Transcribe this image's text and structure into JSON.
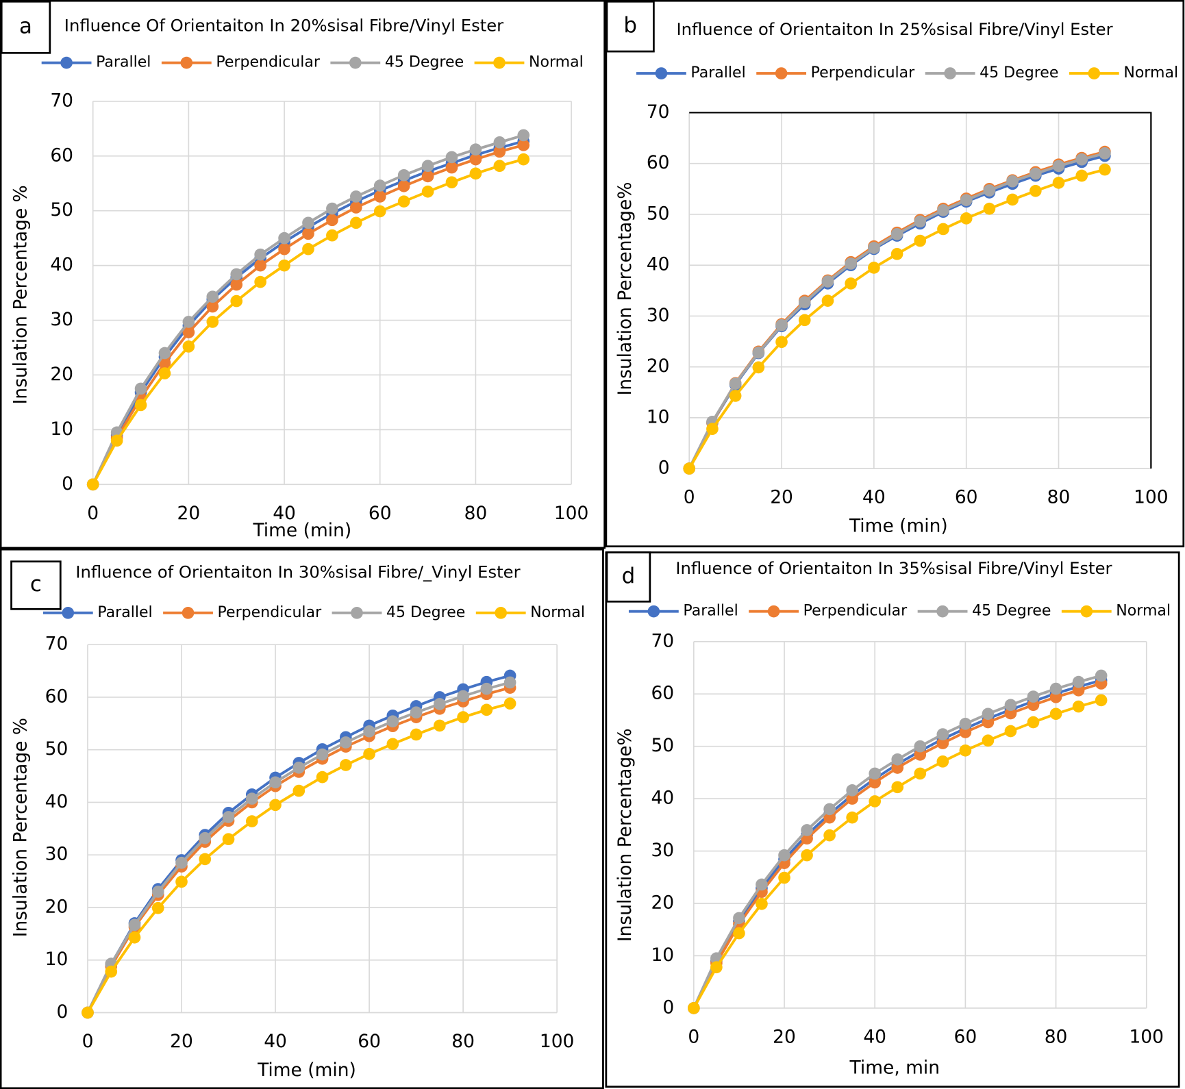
{
  "chart_data": [
    {
      "type": "line",
      "panel_label": "a",
      "title": "Influence Of Orientaiton In 20%sisal Fibre/Vinyl Ester",
      "x_label": "Time (min)",
      "y_label": "Insulation Percentage %",
      "x": [
        0,
        5,
        10,
        15,
        20,
        25,
        30,
        35,
        40,
        45,
        50,
        55,
        60,
        65,
        70,
        75,
        80,
        85,
        90
      ],
      "series": [
        {
          "name": "Parallel",
          "color": "#4472c4",
          "values": [
            0,
            9,
            16.8,
            23.3,
            29,
            33.8,
            37.8,
            41.3,
            44.3,
            47,
            49.5,
            51.7,
            53.7,
            55.5,
            57.2,
            58.7,
            60.2,
            61.5,
            62.7
          ]
        },
        {
          "name": "Perpendicular",
          "color": "#ed7d31",
          "values": [
            0,
            8.5,
            15.8,
            22.2,
            27.8,
            32.5,
            36.5,
            40,
            43,
            45.8,
            48.3,
            50.6,
            52.6,
            54.5,
            56.3,
            57.9,
            59.4,
            60.8,
            62
          ]
        },
        {
          "name": "45 Degree",
          "color": "#a5a5a5",
          "values": [
            0,
            9.5,
            17.5,
            24,
            29.7,
            34.3,
            38.4,
            42,
            45,
            47.8,
            50.4,
            52.6,
            54.6,
            56.5,
            58.2,
            59.8,
            61.2,
            62.5,
            63.8
          ]
        },
        {
          "name": "Normal",
          "color": "#ffc000",
          "values": [
            0,
            8,
            14.5,
            20.3,
            25.2,
            29.7,
            33.5,
            37,
            40,
            43,
            45.5,
            47.8,
            49.9,
            51.7,
            53.5,
            55.2,
            56.8,
            58.2,
            59.4
          ]
        }
      ],
      "xlim": [
        0,
        100
      ],
      "xticks": [
        0,
        20,
        40,
        60,
        80,
        100
      ],
      "ylim": [
        0,
        70
      ],
      "yticks": [
        0,
        10,
        20,
        30,
        40,
        50,
        60,
        70
      ],
      "grid": true,
      "legend": "top"
    },
    {
      "type": "line",
      "panel_label": "b",
      "title": "Influence of Orientaiton In 25%sisal Fibre/Vinyl Ester",
      "x_label": "Time (min)",
      "y_label": "Insulation Percentage%",
      "x": [
        0,
        5,
        10,
        15,
        20,
        25,
        30,
        35,
        40,
        45,
        50,
        55,
        60,
        65,
        70,
        75,
        80,
        85,
        90
      ],
      "series": [
        {
          "name": "Parallel",
          "color": "#4472c4",
          "values": [
            0,
            9,
            16.5,
            22.7,
            28,
            32.3,
            36.4,
            40,
            43.2,
            45.8,
            48.2,
            50.5,
            52.5,
            54.3,
            56,
            57.6,
            59,
            60.3,
            61.5
          ]
        },
        {
          "name": "Perpendicular",
          "color": "#ed7d31",
          "values": [
            0,
            9,
            16.8,
            23,
            28.4,
            33,
            37,
            40.6,
            43.7,
            46.4,
            48.9,
            51.1,
            53.1,
            55,
            56.7,
            58.3,
            59.8,
            61.1,
            62.3
          ]
        },
        {
          "name": "45 Degree",
          "color": "#a5a5a5",
          "values": [
            0,
            9.2,
            16.7,
            22.8,
            28.2,
            32.7,
            36.8,
            40.3,
            43.4,
            46.1,
            48.6,
            50.8,
            52.8,
            54.7,
            56.5,
            58,
            59.5,
            60.8,
            62
          ]
        },
        {
          "name": "Normal",
          "color": "#ffc000",
          "values": [
            0,
            7.8,
            14.3,
            19.9,
            24.9,
            29.2,
            33,
            36.4,
            39.5,
            42.2,
            44.8,
            47.1,
            49.2,
            51.1,
            52.9,
            54.6,
            56.2,
            57.6,
            58.8
          ]
        }
      ],
      "xlim": [
        0,
        100
      ],
      "xticks": [
        0,
        20,
        40,
        60,
        80,
        100
      ],
      "ylim": [
        0,
        70
      ],
      "yticks": [
        0,
        10,
        20,
        30,
        40,
        50,
        60,
        70
      ],
      "grid": true,
      "legend": "top"
    },
    {
      "type": "line",
      "panel_label": "c",
      "title": "Influence of Orientaiton In 30%sisal Fibre/_Vinyl Ester",
      "x_label": "Time (min)",
      "y_label": "Insulation Percentage %",
      "x": [
        0,
        5,
        10,
        15,
        20,
        25,
        30,
        35,
        40,
        45,
        50,
        55,
        60,
        65,
        70,
        75,
        80,
        85,
        90
      ],
      "series": [
        {
          "name": "Parallel",
          "color": "#4472c4",
          "values": [
            0,
            9.2,
            17,
            23.5,
            29,
            33.8,
            38,
            41.5,
            44.7,
            47.5,
            50.1,
            52.4,
            54.6,
            56.5,
            58.3,
            60,
            61.5,
            62.9,
            64.1
          ]
        },
        {
          "name": "Perpendicular",
          "color": "#ed7d31",
          "values": [
            0,
            8.8,
            16.3,
            22.4,
            27.8,
            32.5,
            36.5,
            40,
            43.1,
            45.8,
            48.3,
            50.6,
            52.6,
            54.5,
            56.2,
            57.8,
            59.2,
            60.6,
            61.8
          ]
        },
        {
          "name": "45 Degree",
          "color": "#a5a5a5",
          "values": [
            0,
            9.3,
            16.7,
            23,
            28.5,
            33.2,
            37.2,
            40.7,
            43.8,
            46.6,
            49.1,
            51.4,
            53.5,
            55.4,
            57.1,
            58.7,
            60.2,
            61.6,
            62.8
          ]
        },
        {
          "name": "Normal",
          "color": "#ffc000",
          "values": [
            0,
            7.8,
            14.3,
            19.9,
            24.9,
            29.2,
            33,
            36.4,
            39.5,
            42.2,
            44.8,
            47.1,
            49.2,
            51.1,
            52.9,
            54.6,
            56.2,
            57.6,
            58.8
          ]
        }
      ],
      "xlim": [
        0,
        100
      ],
      "xticks": [
        0,
        20,
        40,
        60,
        80,
        100
      ],
      "ylim": [
        0,
        70
      ],
      "yticks": [
        0,
        10,
        20,
        30,
        40,
        50,
        60,
        70
      ],
      "grid": true,
      "legend": "top"
    },
    {
      "type": "line",
      "panel_label": "d",
      "title": "Influence of Orientaiton In 35%sisal Fibre/Vinyl Ester",
      "x_label": "Time, min",
      "y_label": "Insulation Percentage%",
      "x": [
        0,
        5,
        10,
        15,
        20,
        25,
        30,
        35,
        40,
        45,
        50,
        55,
        60,
        65,
        70,
        75,
        80,
        85,
        90
      ],
      "series": [
        {
          "name": "Parallel",
          "color": "#4472c4",
          "values": [
            0,
            9,
            16.6,
            22.9,
            28.4,
            33.1,
            37.1,
            40.7,
            43.8,
            46.6,
            49.1,
            51.4,
            53.4,
            55.3,
            57,
            58.6,
            60.1,
            61.4,
            62.6
          ]
        },
        {
          "name": "Perpendicular",
          "color": "#ed7d31",
          "values": [
            0,
            8.6,
            16,
            22.2,
            27.7,
            32.4,
            36.4,
            40,
            43.1,
            45.9,
            48.4,
            50.6,
            52.7,
            54.6,
            56.3,
            57.9,
            59.4,
            60.7,
            62
          ]
        },
        {
          "name": "45 Degree",
          "color": "#a5a5a5",
          "values": [
            0,
            9.5,
            17.2,
            23.6,
            29.2,
            34,
            38,
            41.6,
            44.8,
            47.5,
            50,
            52.3,
            54.3,
            56.2,
            57.9,
            59.5,
            61,
            62.3,
            63.5
          ]
        },
        {
          "name": "Normal",
          "color": "#ffc000",
          "values": [
            0,
            7.8,
            14.3,
            19.9,
            24.9,
            29.2,
            33,
            36.4,
            39.5,
            42.2,
            44.8,
            47.1,
            49.2,
            51.1,
            52.9,
            54.6,
            56.2,
            57.6,
            58.8
          ]
        }
      ],
      "xlim": [
        0,
        100
      ],
      "xticks": [
        0,
        20,
        40,
        60,
        80,
        100
      ],
      "ylim": [
        0,
        70
      ],
      "yticks": [
        0,
        10,
        20,
        30,
        40,
        50,
        60,
        70
      ],
      "grid": true,
      "legend": "top"
    }
  ]
}
